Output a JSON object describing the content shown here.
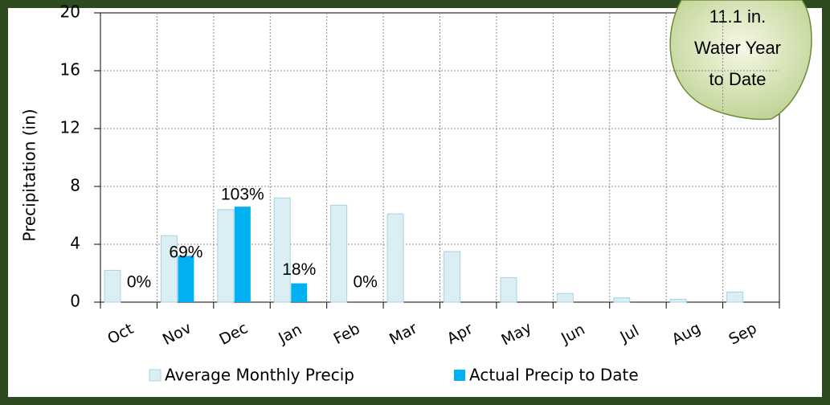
{
  "chart_data": {
    "type": "bar",
    "y_label": "Precipitation (in)",
    "categories": [
      "Oct",
      "Nov",
      "Dec",
      "Jan",
      "Feb",
      "Mar",
      "Apr",
      "May",
      "Jun",
      "Jul",
      "Aug",
      "Sep"
    ],
    "series": [
      {
        "name": "Average Monthly Precip",
        "color": "#daeef3",
        "values": [
          2.2,
          4.6,
          6.4,
          7.2,
          6.7,
          6.1,
          3.5,
          1.7,
          0.6,
          0.3,
          0.2,
          0.7
        ]
      },
      {
        "name": "Actual Precip to Date",
        "color": "#00b0f0",
        "values": [
          0,
          3.2,
          6.6,
          1.3,
          0,
          null,
          null,
          null,
          null,
          null,
          null,
          null
        ]
      }
    ],
    "percent_labels": [
      "0%",
      "69%",
      "103%",
      "18%",
      "0%",
      null,
      null,
      null,
      null,
      null,
      null,
      null
    ],
    "ylim": [
      0,
      20
    ],
    "yticks": [
      0,
      4,
      8,
      12,
      16,
      20
    ],
    "grid": true,
    "annotation": [
      "11.1 in.",
      "Water Year",
      "to Date"
    ]
  }
}
